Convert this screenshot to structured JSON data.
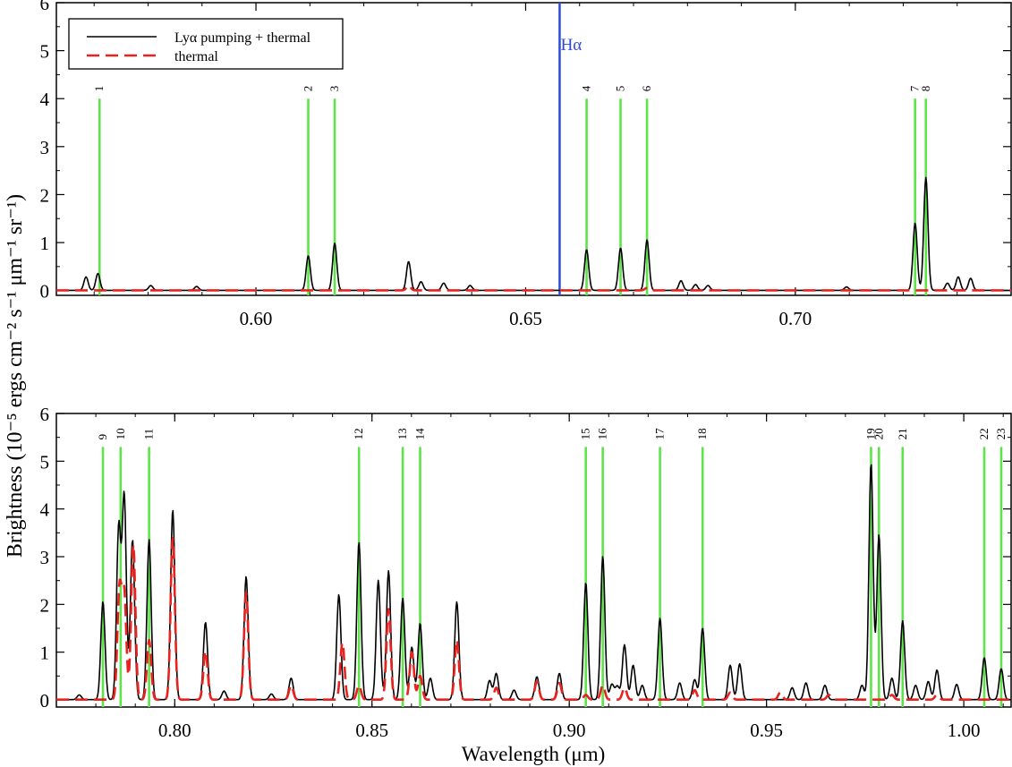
{
  "figure": {
    "ylabel": "Brightness (10⁻⁵ ergs cm⁻² s⁻¹ μm⁻¹ sr⁻¹)",
    "xlabel": "Wavelength (μm)"
  },
  "colors": {
    "total": "#000000",
    "thermal": "#e8231f",
    "marker": "#5ee34a",
    "halpha": "#2b4bd8"
  },
  "legend": {
    "total": "Lyα pumping + thermal",
    "thermal": "thermal"
  },
  "chart_data": [
    {
      "type": "line",
      "panel": "top",
      "xlim": [
        0.563,
        0.74
      ],
      "ylim": [
        -0.1,
        6
      ],
      "xticks": [
        0.6,
        0.65,
        0.7
      ],
      "xtick_labels": [
        "0.60",
        "0.65",
        "0.70"
      ],
      "yticks": [
        0,
        1,
        2,
        3,
        4,
        5,
        6
      ],
      "ytick_labels": [
        "0",
        "1",
        "2",
        "3",
        "4",
        "5",
        "6"
      ],
      "grid": false,
      "legend_position": "top-left",
      "markers": [
        {
          "label": "1",
          "x": 0.571,
          "top": 4.0
        },
        {
          "label": "2",
          "x": 0.6097,
          "top": 4.0
        },
        {
          "label": "3",
          "x": 0.6146,
          "top": 4.0
        },
        {
          "label": "4",
          "x": 0.6613,
          "top": 4.0
        },
        {
          "label": "5",
          "x": 0.6676,
          "top": 4.0
        },
        {
          "label": "6",
          "x": 0.6725,
          "top": 4.0
        },
        {
          "label": "7",
          "x": 0.7222,
          "top": 4.0
        },
        {
          "label": "8",
          "x": 0.7242,
          "top": 4.0
        }
      ],
      "halpha": {
        "label": "Hα",
        "x": 0.6563
      },
      "series": [
        {
          "name": "Lyα pumping + thermal",
          "style": "solid",
          "peaks": [
            [
              0.5685,
              0.28
            ],
            [
              0.5707,
              0.35
            ],
            [
              0.5805,
              0.1
            ],
            [
              0.589,
              0.08
            ],
            [
              0.6097,
              0.72
            ],
            [
              0.6146,
              0.98
            ],
            [
              0.6283,
              0.6
            ],
            [
              0.6306,
              0.18
            ],
            [
              0.6348,
              0.15
            ],
            [
              0.6397,
              0.1
            ],
            [
              0.6613,
              0.85
            ],
            [
              0.6676,
              0.88
            ],
            [
              0.6725,
              1.05
            ],
            [
              0.6788,
              0.2
            ],
            [
              0.6815,
              0.12
            ],
            [
              0.6838,
              0.1
            ],
            [
              0.7095,
              0.07
            ],
            [
              0.7222,
              1.4
            ],
            [
              0.7242,
              2.35
            ],
            [
              0.7282,
              0.15
            ],
            [
              0.7302,
              0.28
            ],
            [
              0.7325,
              0.25
            ]
          ]
        },
        {
          "name": "thermal",
          "style": "dashed",
          "peaks": [
            [
              0.6283,
              0.1
            ],
            [
              0.6725,
              0.05
            ]
          ]
        }
      ]
    },
    {
      "type": "line",
      "panel": "bottom",
      "xlim": [
        0.77,
        1.012
      ],
      "ylim": [
        -0.15,
        6
      ],
      "xticks": [
        0.8,
        0.85,
        0.9,
        0.95,
        1.0
      ],
      "xtick_labels": [
        "0.80",
        "0.85",
        "0.90",
        "0.95",
        "1.00"
      ],
      "yticks": [
        0,
        1,
        2,
        3,
        4,
        5,
        6
      ],
      "ytick_labels": [
        "0",
        "1",
        "2",
        "3",
        "4",
        "5",
        "6"
      ],
      "grid": false,
      "markers": [
        {
          "label": "9",
          "x": 0.7818,
          "top": 5.3
        },
        {
          "label": "10",
          "x": 0.7863,
          "top": 5.3
        },
        {
          "label": "11",
          "x": 0.7935,
          "top": 5.3
        },
        {
          "label": "12",
          "x": 0.8467,
          "top": 5.3
        },
        {
          "label": "13",
          "x": 0.8578,
          "top": 5.3
        },
        {
          "label": "14",
          "x": 0.8622,
          "top": 5.3
        },
        {
          "label": "15",
          "x": 0.9042,
          "top": 5.3
        },
        {
          "label": "16",
          "x": 0.9085,
          "top": 5.3
        },
        {
          "label": "17",
          "x": 0.923,
          "top": 5.3
        },
        {
          "label": "18",
          "x": 0.9338,
          "top": 5.3
        },
        {
          "label": "19",
          "x": 0.9765,
          "top": 5.3
        },
        {
          "label": "20",
          "x": 0.9785,
          "top": 5.3
        },
        {
          "label": "21",
          "x": 0.9845,
          "top": 5.3
        },
        {
          "label": "22",
          "x": 1.0052,
          "top": 5.3
        },
        {
          "label": "23",
          "x": 1.0095,
          "top": 5.3
        }
      ],
      "series": [
        {
          "name": "Lyα pumping + thermal",
          "style": "solid",
          "peaks": [
            [
              0.7758,
              0.1
            ],
            [
              0.7818,
              2.05
            ],
            [
              0.7858,
              3.6
            ],
            [
              0.7872,
              4.25
            ],
            [
              0.7893,
              3.35
            ],
            [
              0.7935,
              3.35
            ],
            [
              0.7995,
              3.98
            ],
            [
              0.8078,
              1.62
            ],
            [
              0.8181,
              2.58
            ],
            [
              0.8125,
              0.18
            ],
            [
              0.8245,
              0.12
            ],
            [
              0.8295,
              0.45
            ],
            [
              0.8416,
              2.2
            ],
            [
              0.8467,
              3.3
            ],
            [
              0.8516,
              2.5
            ],
            [
              0.8542,
              2.7
            ],
            [
              0.8578,
              2.12
            ],
            [
              0.8601,
              1.1
            ],
            [
              0.8622,
              1.6
            ],
            [
              0.8648,
              0.45
            ],
            [
              0.8715,
              2.05
            ],
            [
              0.8798,
              0.4
            ],
            [
              0.8815,
              0.55
            ],
            [
              0.886,
              0.2
            ],
            [
              0.8918,
              0.48
            ],
            [
              0.8975,
              0.55
            ],
            [
              0.9042,
              2.45
            ],
            [
              0.9085,
              3.0
            ],
            [
              0.9108,
              0.32
            ],
            [
              0.9122,
              0.28
            ],
            [
              0.914,
              1.15
            ],
            [
              0.9162,
              0.72
            ],
            [
              0.9185,
              0.3
            ],
            [
              0.923,
              1.7
            ],
            [
              0.928,
              0.35
            ],
            [
              0.9318,
              0.42
            ],
            [
              0.9338,
              1.5
            ],
            [
              0.9408,
              0.72
            ],
            [
              0.9432,
              0.75
            ],
            [
              0.9565,
              0.25
            ],
            [
              0.96,
              0.35
            ],
            [
              0.9648,
              0.3
            ],
            [
              0.9742,
              0.3
            ],
            [
              0.9765,
              4.95
            ],
            [
              0.9785,
              3.45
            ],
            [
              0.9818,
              0.45
            ],
            [
              0.9845,
              1.65
            ],
            [
              0.9878,
              0.3
            ],
            [
              0.991,
              0.38
            ],
            [
              0.9932,
              0.62
            ],
            [
              0.9982,
              0.32
            ],
            [
              1.0052,
              0.88
            ],
            [
              1.0095,
              0.65
            ]
          ]
        },
        {
          "name": "thermal",
          "style": "dashed",
          "peaks": [
            [
              0.786,
              2.3
            ],
            [
              0.7872,
              2.2
            ],
            [
              0.7895,
              3.25
            ],
            [
              0.7935,
              1.25
            ],
            [
              0.7995,
              3.4
            ],
            [
              0.8078,
              1.02
            ],
            [
              0.8181,
              2.25
            ],
            [
              0.8295,
              0.3
            ],
            [
              0.8425,
              1.2
            ],
            [
              0.8467,
              0.3
            ],
            [
              0.8542,
              1.9
            ],
            [
              0.8601,
              1.0
            ],
            [
              0.8622,
              0.5
            ],
            [
              0.8715,
              1.25
            ],
            [
              0.8815,
              0.25
            ],
            [
              0.8918,
              0.38
            ],
            [
              0.8975,
              0.35
            ],
            [
              0.9042,
              0.1
            ],
            [
              0.9085,
              0.3
            ],
            [
              0.914,
              0.25
            ],
            [
              0.9318,
              0.2
            ],
            [
              0.9408,
              0.15
            ],
            [
              0.9535,
              0.15
            ],
            [
              0.9658,
              0.1
            ],
            [
              0.9818,
              0.1
            ],
            [
              0.9932,
              0.1
            ]
          ]
        }
      ]
    }
  ]
}
